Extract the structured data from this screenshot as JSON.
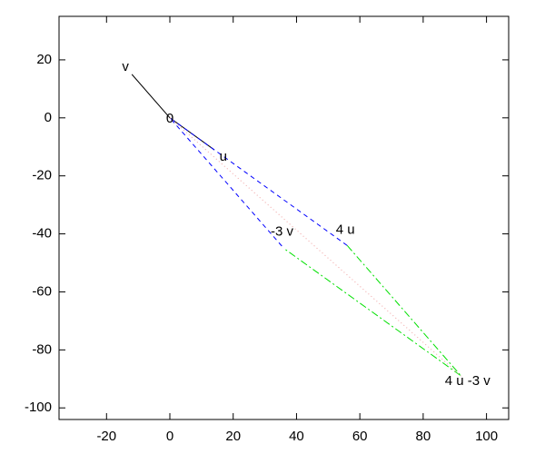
{
  "chart_data": {
    "type": "line",
    "xlim": [
      -35,
      107
    ],
    "ylim": [
      -104,
      35
    ],
    "xticks": [
      -20,
      0,
      20,
      40,
      60,
      80,
      100
    ],
    "yticks": [
      -100,
      -80,
      -60,
      -40,
      -20,
      0,
      20
    ],
    "grid": false,
    "series": [
      {
        "color": "#000000",
        "dash": "solid",
        "x": [
          -12,
          0,
          14
        ],
        "y": [
          15,
          0,
          -11
        ]
      },
      {
        "color": "#0000ff",
        "dash": "dashed",
        "x": [
          56,
          0,
          36
        ],
        "y": [
          -44,
          0,
          -45
        ]
      },
      {
        "color": "#00e000",
        "dash": "dashdot",
        "x": [
          56,
          92,
          36
        ],
        "y": [
          -44,
          -89,
          -45
        ]
      },
      {
        "color": "#f0a0a0",
        "dash": "dotted",
        "x": [
          0,
          92
        ],
        "y": [
          0,
          -89
        ]
      }
    ],
    "annotations": [
      {
        "text": "v",
        "x": -12,
        "y": 15
      },
      {
        "text": "0",
        "x": 0,
        "y": 0
      },
      {
        "text": "u",
        "x": 14,
        "y": -11
      },
      {
        "text": "-3 v",
        "x": 36,
        "y": -45
      },
      {
        "text": "4 u",
        "x": 56,
        "y": -44
      },
      {
        "text": "4 u -3 v",
        "x": 92,
        "y": -89
      }
    ]
  }
}
